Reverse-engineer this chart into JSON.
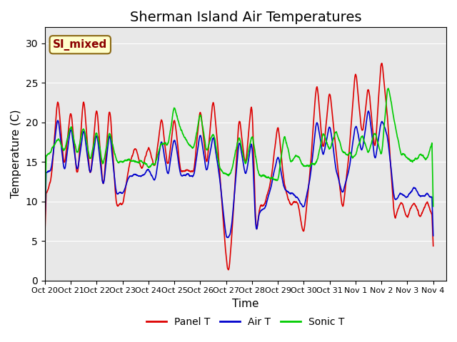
{
  "title": "Sherman Island Air Temperatures",
  "ylabel": "Temperature (C)",
  "xlabel": "Time",
  "annotation_text": "SI_mixed",
  "annotation_color": "#8B0000",
  "annotation_bg": "#FFFFCC",
  "xlim_days": 15.5,
  "ylim": [
    0,
    32
  ],
  "yticks": [
    0,
    5,
    10,
    15,
    20,
    25,
    30
  ],
  "xtick_labels": [
    "Oct 20",
    "Oct 21",
    "Oct 22",
    "Oct 23",
    "Oct 24",
    "Oct 25",
    "Oct 26",
    "Oct 27",
    "Oct 28",
    "Oct 29",
    "Oct 30",
    "Oct 31",
    "Nov 1",
    "Nov 2",
    "Nov 3",
    "Nov 4"
  ],
  "bg_color": "#E8E8E8",
  "line_colors": {
    "panel": "#DD0000",
    "air": "#0000CC",
    "sonic": "#00CC00"
  },
  "line_width": 1.2,
  "legend_labels": [
    "Panel T",
    "Air T",
    "Sonic T"
  ],
  "title_fontsize": 14,
  "label_fontsize": 11,
  "panel_ctrl_t": [
    0,
    0.25,
    0.5,
    0.75,
    1.0,
    1.25,
    1.5,
    1.75,
    2.0,
    2.25,
    2.5,
    2.75,
    3.0,
    3.25,
    3.5,
    3.75,
    4.0,
    4.25,
    4.5,
    4.75,
    5.0,
    5.25,
    5.5,
    5.75,
    6.0,
    6.25,
    6.5,
    6.75,
    7.0,
    7.1,
    7.25,
    7.5,
    7.75,
    8.0,
    8.15,
    8.3,
    8.5,
    8.75,
    9.0,
    9.25,
    9.5,
    9.75,
    10.0,
    10.25,
    10.5,
    10.75,
    11.0,
    11.25,
    11.5,
    11.75,
    12.0,
    12.25,
    12.5,
    12.75,
    13.0,
    13.25,
    13.5,
    13.75,
    14.0,
    14.25,
    14.5,
    14.75,
    15.0
  ],
  "panel_ctrl_v": [
    10.5,
    13.0,
    23.5,
    14.0,
    22.0,
    12.5,
    23.5,
    12.5,
    22.5,
    11.0,
    22.5,
    9.5,
    9.5,
    14.5,
    17.0,
    14.0,
    17.0,
    14.0,
    21.0,
    14.0,
    21.0,
    13.5,
    14.0,
    13.5,
    22.0,
    14.0,
    23.5,
    14.0,
    2.5,
    0.5,
    7.0,
    21.0,
    14.0,
    23.5,
    5.5,
    9.5,
    9.5,
    13.0,
    20.0,
    12.0,
    9.5,
    10.0,
    5.5,
    14.0,
    25.5,
    16.0,
    24.5,
    16.0,
    8.5,
    16.0,
    27.0,
    18.0,
    25.0,
    16.0,
    28.5,
    20.0,
    7.5,
    10.0,
    8.0,
    10.0,
    8.0,
    10.0,
    8.0
  ],
  "air_ctrl_t": [
    0,
    0.25,
    0.5,
    0.75,
    1.0,
    1.25,
    1.5,
    1.75,
    2.0,
    2.25,
    2.5,
    2.75,
    3.0,
    3.25,
    3.5,
    3.75,
    4.0,
    4.25,
    4.5,
    4.75,
    5.0,
    5.25,
    5.5,
    5.75,
    6.0,
    6.25,
    6.5,
    6.75,
    7.0,
    7.15,
    7.25,
    7.5,
    7.75,
    8.0,
    8.15,
    8.3,
    8.5,
    8.75,
    9.0,
    9.25,
    9.5,
    9.75,
    10.0,
    10.25,
    10.5,
    10.75,
    11.0,
    11.25,
    11.5,
    11.75,
    12.0,
    12.25,
    12.5,
    12.75,
    13.0,
    13.25,
    13.5,
    13.75,
    14.0,
    14.25,
    14.5,
    14.75,
    15.0
  ],
  "air_ctrl_v": [
    13.5,
    14.0,
    21.0,
    13.5,
    19.5,
    13.5,
    19.5,
    13.0,
    19.0,
    11.5,
    19.0,
    11.0,
    11.0,
    13.0,
    13.5,
    13.0,
    14.0,
    12.5,
    18.0,
    13.0,
    18.5,
    13.0,
    13.5,
    13.0,
    19.0,
    13.5,
    18.5,
    13.0,
    5.5,
    5.5,
    8.0,
    18.0,
    13.0,
    18.0,
    5.5,
    9.0,
    9.0,
    12.0,
    16.0,
    11.5,
    11.0,
    10.5,
    9.0,
    13.0,
    20.5,
    15.5,
    20.0,
    14.0,
    11.0,
    14.0,
    20.0,
    16.0,
    22.0,
    15.0,
    20.5,
    18.0,
    10.0,
    11.0,
    10.5,
    12.0,
    10.5,
    11.0,
    10.5
  ],
  "sonic_ctrl_t": [
    0,
    0.25,
    0.5,
    0.75,
    1.0,
    1.25,
    1.5,
    1.75,
    2.0,
    2.25,
    2.5,
    2.75,
    3.0,
    3.25,
    3.5,
    3.75,
    4.0,
    4.25,
    4.5,
    4.75,
    5.0,
    5.25,
    5.5,
    5.75,
    6.0,
    6.25,
    6.5,
    6.75,
    7.0,
    7.15,
    7.25,
    7.5,
    7.75,
    8.0,
    8.25,
    8.5,
    8.75,
    9.0,
    9.25,
    9.5,
    9.75,
    10.0,
    10.25,
    10.5,
    10.75,
    11.0,
    11.25,
    11.5,
    11.75,
    12.0,
    12.25,
    12.5,
    12.75,
    13.0,
    13.25,
    13.5,
    13.75,
    14.0,
    14.25,
    14.5,
    14.75,
    15.0
  ],
  "sonic_ctrl_v": [
    15.5,
    16.5,
    18.0,
    16.5,
    19.5,
    16.0,
    19.5,
    15.0,
    19.0,
    14.5,
    19.0,
    15.0,
    15.0,
    15.5,
    15.0,
    15.0,
    14.5,
    14.5,
    17.5,
    17.0,
    22.0,
    19.0,
    17.5,
    16.5,
    21.5,
    16.0,
    19.0,
    14.0,
    13.5,
    13.5,
    14.5,
    18.5,
    14.5,
    18.5,
    13.5,
    13.0,
    13.0,
    12.5,
    18.5,
    15.0,
    16.0,
    14.5,
    14.5,
    15.0,
    19.0,
    16.5,
    19.0,
    16.0,
    16.0,
    15.5,
    18.5,
    16.0,
    19.0,
    15.5,
    25.0,
    20.0,
    16.0,
    15.5,
    15.0,
    16.0,
    15.5,
    18.0
  ]
}
